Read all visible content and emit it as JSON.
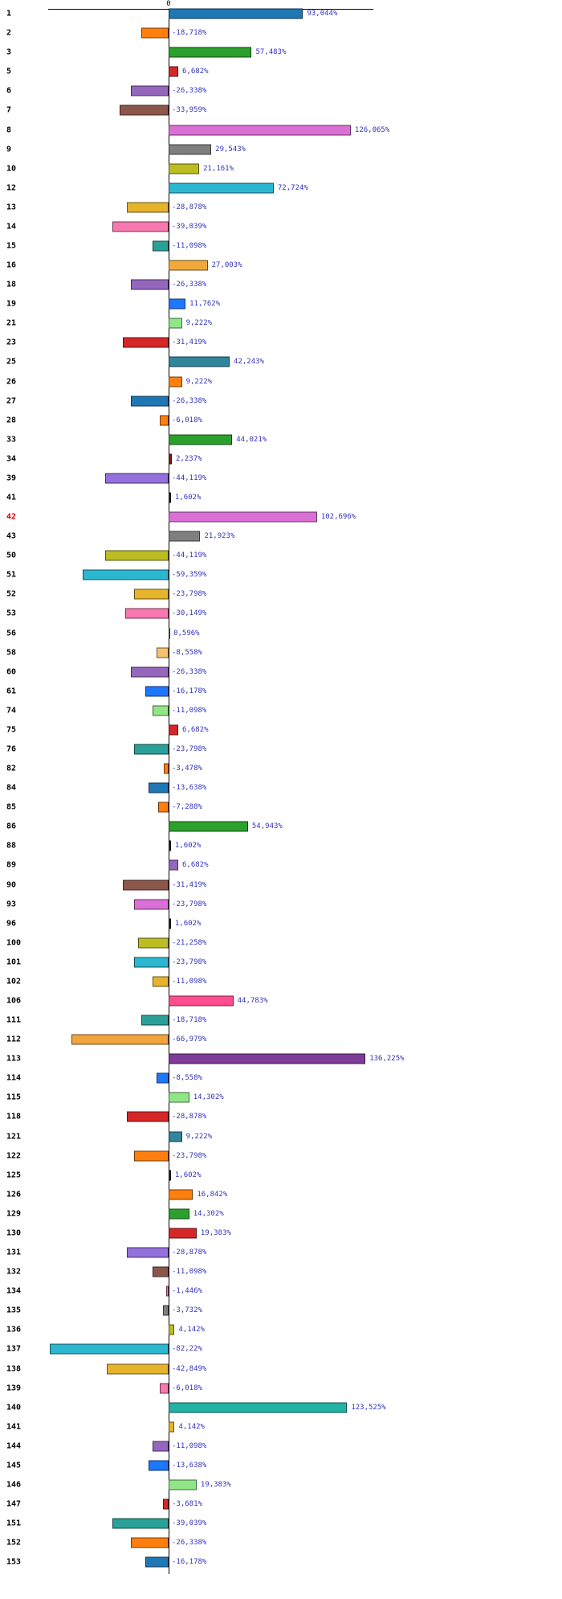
{
  "chart_data": {
    "type": "bar",
    "orientation": "horizontal",
    "title": "",
    "xlabel": "",
    "ylabel": "",
    "unit": "%",
    "value_format": "comma-decimal-percent",
    "xlim": [
      -83,
      137
    ],
    "grid": false,
    "legend": false,
    "axis": {
      "zero_tick_label": "0"
    },
    "highlight_row": "42",
    "colors": {
      "value_label": "#3333bb",
      "highlight_label": "#e00000",
      "axis": "#000000"
    },
    "rows": [
      {
        "label": "1",
        "text": "93,044%",
        "value": 93.044,
        "color": "#1f77b4"
      },
      {
        "label": "2",
        "text": "-18,718%",
        "value": -18.718,
        "color": "#ff7f0e"
      },
      {
        "label": "3",
        "text": "57,483%",
        "value": 57.483,
        "color": "#2ca02c"
      },
      {
        "label": "5",
        "text": "6,682%",
        "value": 6.682,
        "color": "#d62728"
      },
      {
        "label": "6",
        "text": "-26,338%",
        "value": -26.338,
        "color": "#9467bd"
      },
      {
        "label": "7",
        "text": "-33,959%",
        "value": -33.959,
        "color": "#8c564b"
      },
      {
        "label": "8",
        "text": "126,065%",
        "value": 126.065,
        "color": "#da70d6"
      },
      {
        "label": "9",
        "text": "29,543%",
        "value": 29.543,
        "color": "#7f7f7f"
      },
      {
        "label": "10",
        "text": "21,161%",
        "value": 21.161,
        "color": "#bcbd22"
      },
      {
        "label": "12",
        "text": "72,724%",
        "value": 72.724,
        "color": "#2bb7cf"
      },
      {
        "label": "13",
        "text": "-28,878%",
        "value": -28.878,
        "color": "#e6b42a"
      },
      {
        "label": "14",
        "text": "-39,039%",
        "value": -39.039,
        "color": "#f878b0"
      },
      {
        "label": "15",
        "text": "-11,098%",
        "value": -11.098,
        "color": "#2aa198"
      },
      {
        "label": "16",
        "text": "27,003%",
        "value": 27.003,
        "color": "#f2a93b"
      },
      {
        "label": "18",
        "text": "-26,338%",
        "value": -26.338,
        "color": "#9467bd"
      },
      {
        "label": "19",
        "text": "11,762%",
        "value": 11.762,
        "color": "#1e78ff"
      },
      {
        "label": "21",
        "text": "9,222%",
        "value": 9.222,
        "color": "#90e686"
      },
      {
        "label": "23",
        "text": "-31,419%",
        "value": -31.419,
        "color": "#d62728"
      },
      {
        "label": "25",
        "text": "42,243%",
        "value": 42.243,
        "color": "#31859c"
      },
      {
        "label": "26",
        "text": "9,222%",
        "value": 9.222,
        "color": "#ff7f0e"
      },
      {
        "label": "27",
        "text": "-26,338%",
        "value": -26.338,
        "color": "#1f77b4"
      },
      {
        "label": "28",
        "text": "-6,018%",
        "value": -6.018,
        "color": "#ff7f0e"
      },
      {
        "label": "33",
        "text": "44,021%",
        "value": 44.021,
        "color": "#2ca02c"
      },
      {
        "label": "34",
        "text": "2,237%",
        "value": 2.237,
        "color": "#8b1a1a"
      },
      {
        "label": "39",
        "text": "-44,119%",
        "value": -44.119,
        "color": "#9370db"
      },
      {
        "label": "41",
        "text": "1,602%",
        "value": 1.602,
        "color": "#2b2b2b"
      },
      {
        "label": "42",
        "text": "102,696%",
        "value": 102.696,
        "color": "#da70d6"
      },
      {
        "label": "43",
        "text": "21,923%",
        "value": 21.923,
        "color": "#7f7f7f"
      },
      {
        "label": "50",
        "text": "-44,119%",
        "value": -44.119,
        "color": "#bcbd22"
      },
      {
        "label": "51",
        "text": "-59,359%",
        "value": -59.359,
        "color": "#2bb7cf"
      },
      {
        "label": "52",
        "text": "-23,798%",
        "value": -23.798,
        "color": "#e6b42a"
      },
      {
        "label": "53",
        "text": "-30,149%",
        "value": -30.149,
        "color": "#f878b0"
      },
      {
        "label": "56",
        "text": "0,596%",
        "value": 0.596,
        "color": "#2aa198"
      },
      {
        "label": "58",
        "text": "-8,558%",
        "value": -8.558,
        "color": "#f6c26f"
      },
      {
        "label": "60",
        "text": "-26,338%",
        "value": -26.338,
        "color": "#9467bd"
      },
      {
        "label": "61",
        "text": "-16,178%",
        "value": -16.178,
        "color": "#1e78ff"
      },
      {
        "label": "74",
        "text": "-11,098%",
        "value": -11.098,
        "color": "#90e686"
      },
      {
        "label": "75",
        "text": "6,682%",
        "value": 6.682,
        "color": "#d62728"
      },
      {
        "label": "76",
        "text": "-23,798%",
        "value": -23.798,
        "color": "#2aa198"
      },
      {
        "label": "82",
        "text": "-3,478%",
        "value": -3.478,
        "color": "#ff7f0e"
      },
      {
        "label": "84",
        "text": "-13,638%",
        "value": -13.638,
        "color": "#1f77b4"
      },
      {
        "label": "85",
        "text": "-7,288%",
        "value": -7.288,
        "color": "#ff7f0e"
      },
      {
        "label": "86",
        "text": "54,943%",
        "value": 54.943,
        "color": "#2ca02c"
      },
      {
        "label": "88",
        "text": "1,602%",
        "value": 1.602,
        "color": "#2b2b2b"
      },
      {
        "label": "89",
        "text": "6,682%",
        "value": 6.682,
        "color": "#9467bd"
      },
      {
        "label": "90",
        "text": "-31,419%",
        "value": -31.419,
        "color": "#8c564b"
      },
      {
        "label": "93",
        "text": "-23,798%",
        "value": -23.798,
        "color": "#da70d6"
      },
      {
        "label": "96",
        "text": "1,602%",
        "value": 1.602,
        "color": "#2b2b2b"
      },
      {
        "label": "100",
        "text": "-21,258%",
        "value": -21.258,
        "color": "#bcbd22"
      },
      {
        "label": "101",
        "text": "-23,798%",
        "value": -23.798,
        "color": "#2bb7cf"
      },
      {
        "label": "102",
        "text": "-11,098%",
        "value": -11.098,
        "color": "#e6b42a"
      },
      {
        "label": "106",
        "text": "44,783%",
        "value": 44.783,
        "color": "#ff4d8d"
      },
      {
        "label": "111",
        "text": "-18,718%",
        "value": -18.718,
        "color": "#2aa198"
      },
      {
        "label": "112",
        "text": "-66,979%",
        "value": -66.979,
        "color": "#f0a43c"
      },
      {
        "label": "113",
        "text": "136,225%",
        "value": 136.225,
        "color": "#7d3c98"
      },
      {
        "label": "114",
        "text": "-8,558%",
        "value": -8.558,
        "color": "#1e78ff"
      },
      {
        "label": "115",
        "text": "14,302%",
        "value": 14.302,
        "color": "#90e686"
      },
      {
        "label": "118",
        "text": "-28,878%",
        "value": -28.878,
        "color": "#d62728"
      },
      {
        "label": "121",
        "text": "9,222%",
        "value": 9.222,
        "color": "#31859c"
      },
      {
        "label": "122",
        "text": "-23,798%",
        "value": -23.798,
        "color": "#ff7f0e"
      },
      {
        "label": "125",
        "text": "1,602%",
        "value": 1.602,
        "color": "#2b2b2b"
      },
      {
        "label": "126",
        "text": "16,842%",
        "value": 16.842,
        "color": "#ff7f0e"
      },
      {
        "label": "129",
        "text": "14,302%",
        "value": 14.302,
        "color": "#2ca02c"
      },
      {
        "label": "130",
        "text": "19,383%",
        "value": 19.383,
        "color": "#d62728"
      },
      {
        "label": "131",
        "text": "-28,878%",
        "value": -28.878,
        "color": "#9370db"
      },
      {
        "label": "132",
        "text": "-11,098%",
        "value": -11.098,
        "color": "#8c564b"
      },
      {
        "label": "134",
        "text": "-1,446%",
        "value": -1.446,
        "color": "#f878b0"
      },
      {
        "label": "135",
        "text": "-3,732%",
        "value": -3.732,
        "color": "#7f7f7f"
      },
      {
        "label": "136",
        "text": "4,142%",
        "value": 4.142,
        "color": "#bcbd22"
      },
      {
        "label": "137",
        "text": "-82,22%",
        "value": -82.22,
        "color": "#2bb7cf"
      },
      {
        "label": "138",
        "text": "-42,849%",
        "value": -42.849,
        "color": "#e6b42a"
      },
      {
        "label": "139",
        "text": "-6,018%",
        "value": -6.018,
        "color": "#f878b0"
      },
      {
        "label": "140",
        "text": "123,525%",
        "value": 123.525,
        "color": "#22b2a6"
      },
      {
        "label": "141",
        "text": "4,142%",
        "value": 4.142,
        "color": "#e6b42a"
      },
      {
        "label": "144",
        "text": "-11,098%",
        "value": -11.098,
        "color": "#9467bd"
      },
      {
        "label": "145",
        "text": "-13,638%",
        "value": -13.638,
        "color": "#1e78ff"
      },
      {
        "label": "146",
        "text": "19,383%",
        "value": 19.383,
        "color": "#90e686"
      },
      {
        "label": "147",
        "text": "-3,681%",
        "value": -3.681,
        "color": "#d62728"
      },
      {
        "label": "151",
        "text": "-39,039%",
        "value": -39.039,
        "color": "#2aa198"
      },
      {
        "label": "152",
        "text": "-26,338%",
        "value": -26.338,
        "color": "#ff7f0e"
      },
      {
        "label": "153",
        "text": "-16,178%",
        "value": -16.178,
        "color": "#1f77b4"
      }
    ]
  }
}
